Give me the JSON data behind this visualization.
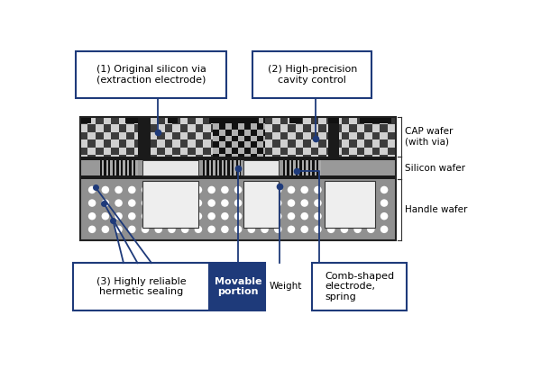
{
  "fig_width": 6.0,
  "fig_height": 4.2,
  "dpi": 100,
  "bg_color": "#ffffff",
  "blue": "#1e3a7a",
  "label1_text": "(1) Original silicon via\n(extraction electrode)",
  "label2_text": "(2) High-precision\ncavity control",
  "label3_text": "(3) Highly reliable\nhermetic sealing",
  "movable_text": "Movable\nportion",
  "weight_text": "Weight",
  "comb_text": "Comb-shaped\nelectrode,\nspring",
  "cap_text": "CAP wafer\n(with via)",
  "silicon_text": "Silicon wafer",
  "handle_text": "Handle wafer",
  "cap_checker_light": "#d0d0d0",
  "cap_checker_dark": "#404040",
  "handle_dot_bg": "#909090",
  "sil_bg": "#a0a0a0"
}
